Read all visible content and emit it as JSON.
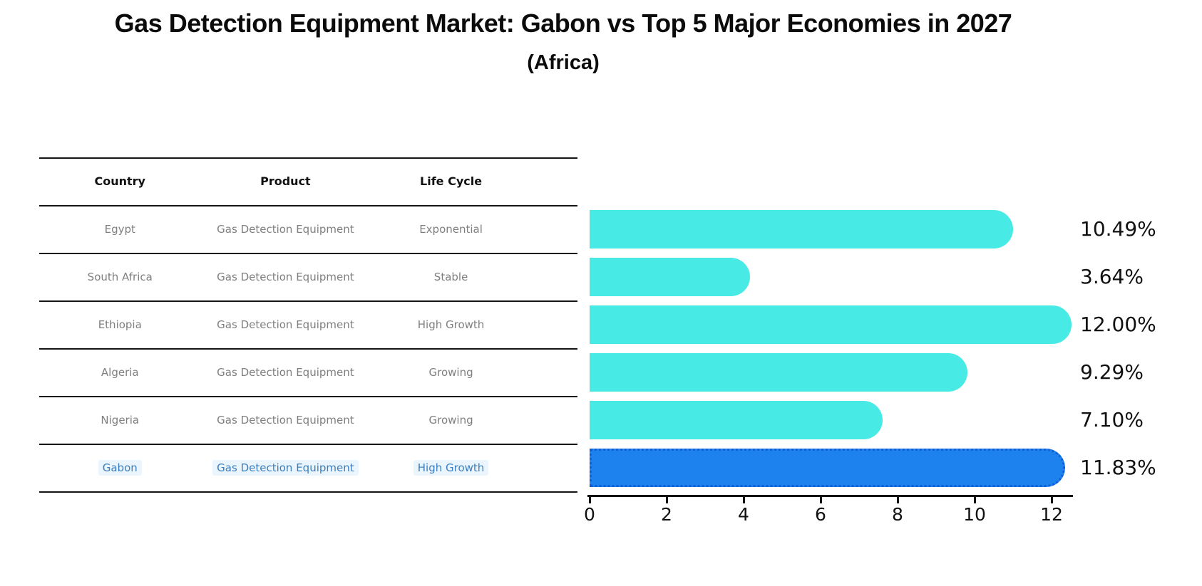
{
  "header": {
    "title": "Gas Detection Equipment Market: Gabon vs Top 5 Major Economies in 2027",
    "subtitle": "(Africa)"
  },
  "table": {
    "columns": [
      "Country",
      "Product",
      "Life Cycle"
    ],
    "rows": [
      {
        "country": "Egypt",
        "product": "Gas Detection Equipment",
        "life_cycle": "Exponential",
        "highlight": false
      },
      {
        "country": "South Africa",
        "product": "Gas Detection Equipment",
        "life_cycle": "Stable",
        "highlight": false
      },
      {
        "country": "Ethiopia",
        "product": "Gas Detection Equipment",
        "life_cycle": "High Growth",
        "highlight": false
      },
      {
        "country": "Algeria",
        "product": "Gas Detection Equipment",
        "life_cycle": "Growing",
        "highlight": false
      },
      {
        "country": "Nigeria",
        "product": "Gas Detection Equipment",
        "life_cycle": "Growing",
        "highlight": false
      },
      {
        "country": "Gabon",
        "product": "Gas Detection Equipment",
        "life_cycle": "High Growth",
        "highlight": true
      }
    ]
  },
  "chart_data": {
    "type": "bar",
    "orientation": "horizontal",
    "title": "Gas Detection Equipment Market: Gabon vs Top 5 Major Economies in 2027 (Africa)",
    "categories": [
      "Egypt",
      "South Africa",
      "Ethiopia",
      "Algeria",
      "Nigeria",
      "Gabon"
    ],
    "values": [
      10.49,
      3.64,
      12.0,
      9.29,
      7.1,
      11.83
    ],
    "value_labels": [
      "10.49%",
      "3.64%",
      "12.00%",
      "9.29%",
      "7.10%",
      "11.83%"
    ],
    "xlabel": "",
    "ylabel": "",
    "xlim": [
      0,
      12.55
    ],
    "xticks": [
      "0",
      "2",
      "4",
      "6",
      "8",
      "10",
      "12"
    ],
    "grid": false,
    "legend": false,
    "bar_color": "#48eae5",
    "highlight_color": "#1d82ee",
    "highlight_border_color": "#0f5fd7",
    "highlight_index": 5,
    "highlight_text_color": "#3d7ebf"
  }
}
